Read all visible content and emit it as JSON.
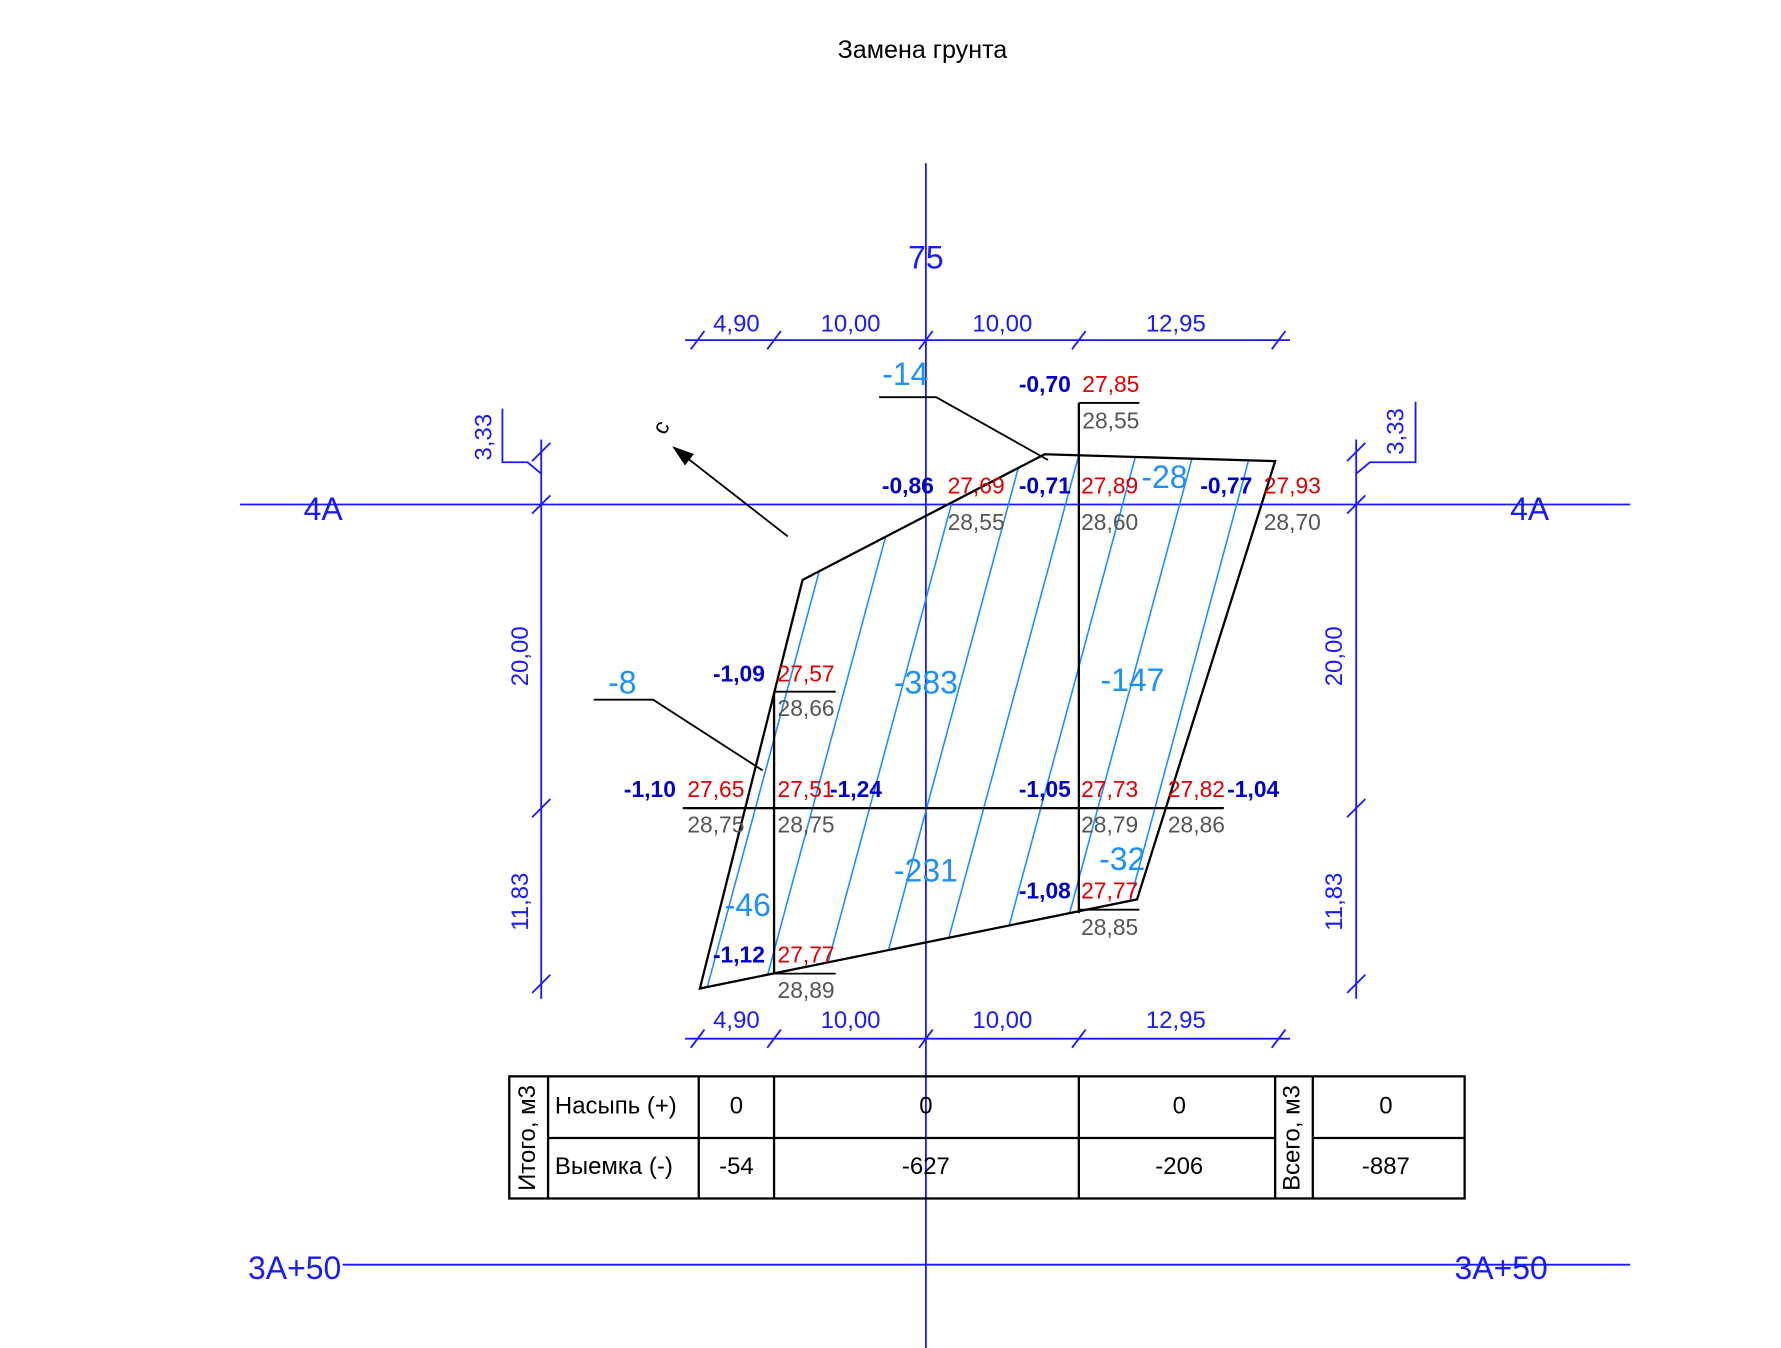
{
  "title": "Замена грунта",
  "axes": {
    "vertical": "75",
    "top": "4A",
    "bottom": "3A+50"
  },
  "dimensions": {
    "top": [
      "4,90",
      "10,00",
      "10,00",
      "12,95"
    ],
    "bottom": [
      "4,90",
      "10,00",
      "10,00",
      "12,95"
    ],
    "left": [
      "3,33",
      "20,00",
      "11,83"
    ],
    "right": [
      "3,33",
      "20,00",
      "11,83"
    ]
  },
  "north_label": "с",
  "volumes": [
    "-14",
    "-8",
    "-383",
    "-147",
    "-28",
    "-46",
    "-231",
    "-32"
  ],
  "points": [
    {
      "work": "-0,70",
      "design": "27,85",
      "existing": "28,55"
    },
    {
      "work": "-0,86",
      "design": "27,69",
      "existing": "28,55"
    },
    {
      "work": "-0,71",
      "design": "27,89",
      "existing": "28,60"
    },
    {
      "work": "-0,77",
      "design": "27,93",
      "existing": "28,70"
    },
    {
      "work": "-1,09",
      "design": "27,57",
      "existing": "28,66"
    },
    {
      "work": "-1,10",
      "design": "27,65",
      "existing": "28,75"
    },
    {
      "work": "-1,24",
      "design": "27,51",
      "existing": "28,75"
    },
    {
      "work": "-1,05",
      "design": "27,73",
      "existing": "28,79"
    },
    {
      "work": "-1,04",
      "design": "27,82",
      "existing": "28,86"
    },
    {
      "work": "-1,08",
      "design": "27,77",
      "existing": "28,85"
    },
    {
      "work": "-1,12",
      "design": "27,77",
      "existing": "28,89"
    }
  ],
  "table": {
    "total_label": "Итого, м3",
    "grand_label": "Всего, м3",
    "rows": [
      {
        "label": "Насыпь (+)",
        "values": [
          "0",
          "0",
          "0"
        ],
        "total": "0"
      },
      {
        "label": "Выемка (-)",
        "values": [
          "-54",
          "-627",
          "-206"
        ],
        "total": "-887"
      }
    ]
  }
}
